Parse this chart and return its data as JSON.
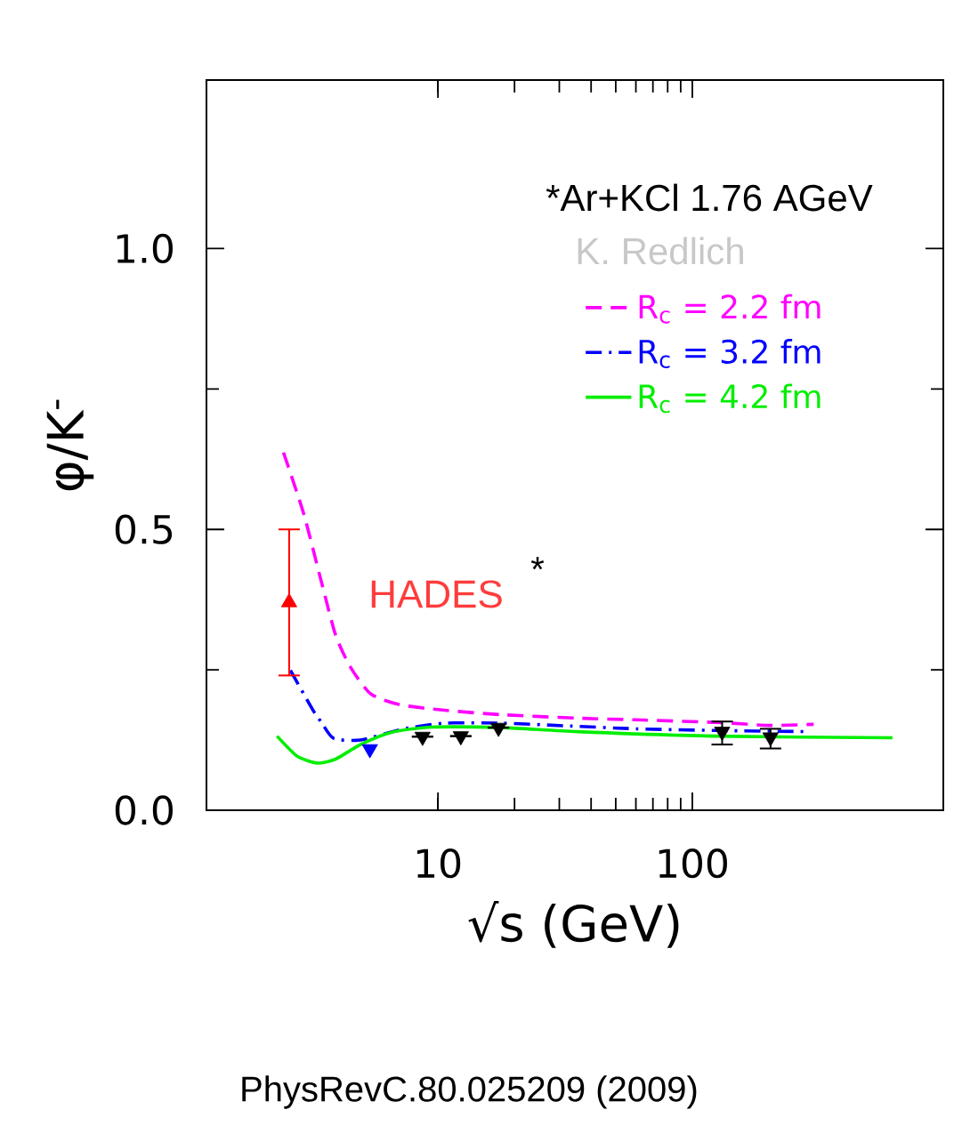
{
  "chart_data": {
    "type": "line",
    "xlabel": "√s (GeV)",
    "ylabel": "φ/K$^{-}$",
    "log": "x",
    "xlim": [
      1.23,
      970
    ],
    "ylim": [
      0,
      1.3
    ],
    "xticks": [
      10,
      100
    ],
    "yticks": [
      {
        "value": 0,
        "label": "0.0"
      },
      0.5,
      {
        "value": 1.0,
        "label": "1.0"
      }
    ],
    "grid": false,
    "legend": "top right",
    "marker": "none",
    "annotations": [
      "*Ar+KCl 1.76 AGeV",
      "K. Redlich",
      "HADES",
      "*",
      "PhysRevC.80.025209 (2009)"
    ],
    "series": [
      {
        "name": "R$_{c}$ = 2.2 fm",
        "type": "line",
        "color": "#ff00ff",
        "line_style": "dashed",
        "x": [
          2.47,
          2.97,
          3.48,
          3.96,
          4.54,
          5.45,
          7.08,
          10.6,
          18,
          35,
          60,
          130,
          200,
          300
        ],
        "values": [
          0.637,
          0.527,
          0.407,
          0.312,
          0.254,
          0.207,
          0.188,
          0.178,
          0.17,
          0.164,
          0.161,
          0.156,
          0.151,
          0.153
        ]
      },
      {
        "name": "R$_{c}$ = 3.2 fm",
        "type": "line",
        "color": "#0000ff",
        "line_style": "dashed",
        "x": [
          2.63,
          3.21,
          3.5,
          3.89,
          4.96,
          7.2,
          10.6,
          18,
          33,
          60,
          125,
          282
        ],
        "values": [
          0.249,
          0.18,
          0.155,
          0.128,
          0.125,
          0.144,
          0.155,
          0.155,
          0.15,
          0.145,
          0.142,
          0.14
        ]
      },
      {
        "name": "R$_{c}$ = 4.2 fm",
        "type": "line",
        "color": "#00ee00",
        "line_style": "solid",
        "x": [
          2.33,
          2.8,
          3.35,
          3.96,
          4.96,
          6.6,
          9.5,
          18,
          35.4,
          120,
          612
        ],
        "values": [
          0.132,
          0.096,
          0.084,
          0.091,
          0.117,
          0.139,
          0.148,
          0.147,
          0.14,
          0.132,
          0.129
        ]
      },
      {
        "type": "scatter",
        "color": "#ff0000",
        "marker": "triangle",
        "x": [
          2.6
        ],
        "values": [
          0.37
        ],
        "errors": [
          [
            0.24,
            0.5
          ]
        ]
      },
      {
        "type": "scatter",
        "color": "#0000ff",
        "marker": "triangle",
        "x": [
          5.4
        ],
        "values": [
          0.109
        ]
      },
      {
        "type": "scatter",
        "color": "#000000",
        "marker": "triangle",
        "x": [
          8.7,
          12.3,
          17.3,
          131,
          203
        ],
        "values": [
          0.131,
          0.132,
          0.147,
          0.14,
          0.13
        ],
        "errors": [
          null,
          null,
          null,
          [
            0.117,
            0.158
          ],
          [
            0.11,
            0.145
          ]
        ]
      }
    ]
  }
}
